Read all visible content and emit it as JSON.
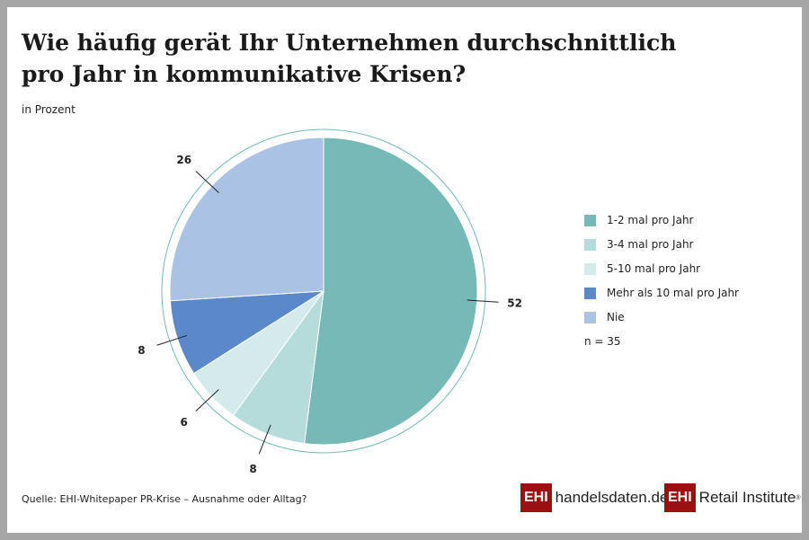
{
  "chart_data": {
    "type": "pie",
    "title": "Wie häufig gerät Ihr Unternehmen durchschnittlich pro Jahr in kommunikative Krisen?",
    "subtitle": "in Prozent",
    "categories": [
      "1-2 mal pro Jahr",
      "3-4 mal pro Jahr",
      "5-10 mal pro Jahr",
      "Mehr als 10 mal pro Jahr",
      "Nie"
    ],
    "values": [
      52,
      8,
      6,
      8,
      26
    ],
    "colors": [
      "#76b9b7",
      "#b5dbdb",
      "#d5eaea",
      "#5b88c9",
      "#aac2e3"
    ],
    "legend_position": "right",
    "note": "n = 35"
  },
  "source": "Quelle: EHI-Whitepaper PR-Krise – Ausnahme oder Alltag?",
  "logos": {
    "ehi": "EHI",
    "site": "handelsdaten.de",
    "institute": "Retail Institute"
  }
}
